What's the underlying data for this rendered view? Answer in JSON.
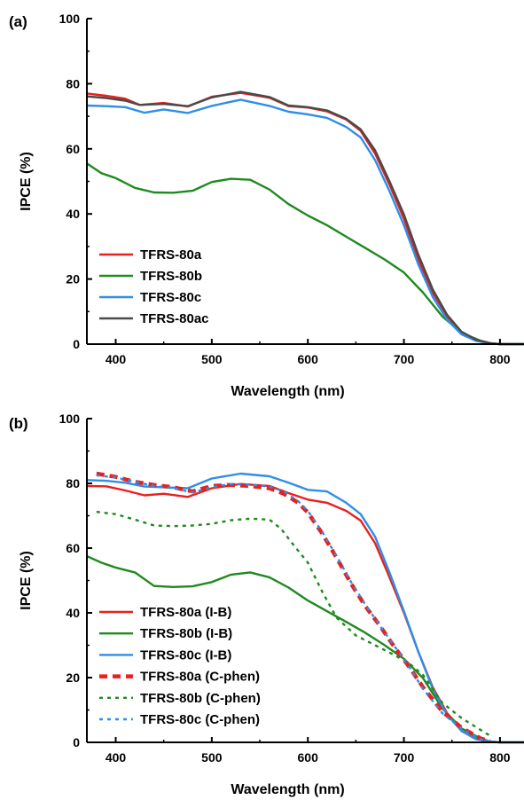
{
  "chart_data": [
    {
      "type": "line",
      "panel_label": "(a)",
      "xlabel": "Wavelength (nm)",
      "ylabel": "IPCE (%)",
      "xlim": [
        370,
        825
      ],
      "ylim": [
        0,
        100
      ],
      "x_ticks": [
        400,
        500,
        600,
        700,
        800
      ],
      "y_ticks": [
        0,
        20,
        40,
        60,
        80,
        100
      ],
      "legend_position": "bottom-left",
      "series": [
        {
          "name": "TFRS-80a",
          "color": "#e8201e",
          "style": "solid",
          "x": [
            370,
            390,
            410,
            425,
            450,
            475,
            500,
            530,
            560,
            580,
            600,
            620,
            640,
            655,
            670,
            685,
            700,
            715,
            730,
            745,
            760,
            775,
            790,
            800,
            825
          ],
          "y": [
            77,
            76.3,
            75.4,
            73.5,
            74.1,
            73.0,
            76.0,
            77.2,
            75.7,
            73.1,
            72.7,
            71.5,
            69.0,
            65.5,
            58.5,
            49,
            38.5,
            26,
            15.8,
            8.5,
            3.5,
            1.3,
            0.3,
            0,
            0
          ]
        },
        {
          "name": "TFRS-80b",
          "color": "#1f8a1f",
          "style": "solid",
          "x": [
            370,
            385,
            400,
            420,
            440,
            460,
            480,
            500,
            520,
            540,
            560,
            580,
            600,
            620,
            640,
            660,
            680,
            700,
            720,
            740,
            760,
            780,
            790,
            800,
            825
          ],
          "y": [
            55.5,
            52.5,
            51,
            48,
            46.6,
            46.5,
            47.1,
            49.8,
            50.8,
            50.5,
            47.5,
            43,
            39.5,
            36.5,
            33,
            29.5,
            26,
            22,
            15.8,
            8.5,
            3.5,
            1,
            0.2,
            0,
            0
          ]
        },
        {
          "name": "TFRS-80c",
          "color": "#2e8ee8",
          "style": "solid",
          "x": [
            370,
            390,
            410,
            430,
            450,
            475,
            500,
            530,
            560,
            580,
            600,
            620,
            640,
            655,
            670,
            685,
            700,
            715,
            730,
            745,
            760,
            775,
            790,
            800,
            825
          ],
          "y": [
            73.3,
            73.1,
            72.8,
            71.1,
            72.1,
            71.0,
            73.2,
            75.1,
            73.2,
            71.4,
            70.6,
            69.5,
            66.7,
            63.5,
            56.5,
            47,
            36.5,
            24.5,
            14.5,
            7.5,
            3,
            1,
            0.2,
            0,
            0
          ]
        },
        {
          "name": "TFRS-80ac",
          "color": "#4a4a4a",
          "style": "solid",
          "x": [
            370,
            390,
            410,
            425,
            450,
            475,
            500,
            530,
            560,
            580,
            600,
            620,
            640,
            655,
            670,
            685,
            700,
            715,
            730,
            745,
            760,
            775,
            790,
            800,
            825
          ],
          "y": [
            76.1,
            75.6,
            74.8,
            73.5,
            73.8,
            73.1,
            75.8,
            77.5,
            75.9,
            73.3,
            72.8,
            71.8,
            69.2,
            66,
            59.5,
            50,
            39.8,
            27.5,
            16.8,
            9,
            3.8,
            1.4,
            0.3,
            0,
            0
          ]
        }
      ]
    },
    {
      "type": "line",
      "panel_label": "(b)",
      "xlabel": "Wavelength (nm)",
      "ylabel": "IPCE (%)",
      "xlim": [
        370,
        825
      ],
      "ylim": [
        0,
        100
      ],
      "x_ticks": [
        400,
        500,
        600,
        700,
        800
      ],
      "y_ticks": [
        0,
        20,
        40,
        60,
        80,
        100
      ],
      "legend_position": "bottom-left",
      "series": [
        {
          "name": "TFRS-80a (I-B)",
          "color": "#e8201e",
          "style": "solid",
          "x": [
            370,
            390,
            410,
            430,
            450,
            475,
            500,
            530,
            560,
            580,
            600,
            620,
            640,
            655,
            670,
            685,
            700,
            715,
            730,
            745,
            760,
            775,
            790,
            800,
            825
          ],
          "y": [
            79.2,
            79.1,
            77.8,
            76.3,
            76.8,
            75.8,
            78.5,
            79.8,
            79.2,
            77,
            75,
            74,
            71.5,
            68.5,
            61.5,
            51,
            40,
            28,
            17,
            9,
            3.5,
            1.2,
            0.3,
            0,
            0
          ]
        },
        {
          "name": "TFRS-80b (I-B)",
          "color": "#1f8a1f",
          "style": "solid",
          "x": [
            370,
            385,
            400,
            420,
            440,
            460,
            480,
            500,
            520,
            540,
            560,
            580,
            600,
            620,
            640,
            660,
            680,
            700,
            720,
            740,
            760,
            780,
            790,
            800,
            825
          ],
          "y": [
            57.5,
            55.5,
            54,
            52.5,
            48.3,
            48,
            48.2,
            49.5,
            51.8,
            52.5,
            51,
            47.8,
            43.8,
            40.5,
            37.2,
            33.8,
            30,
            25.8,
            19.8,
            10.5,
            4.3,
            1.2,
            0.2,
            0,
            0
          ]
        },
        {
          "name": "TFRS-80c (I-B)",
          "color": "#2e8ee8",
          "style": "solid",
          "x": [
            370,
            390,
            410,
            430,
            450,
            475,
            500,
            530,
            560,
            580,
            600,
            620,
            640,
            655,
            670,
            685,
            700,
            715,
            730,
            745,
            760,
            775,
            790,
            800,
            825
          ],
          "y": [
            81,
            80.8,
            80.2,
            79,
            78.8,
            78.5,
            81.5,
            83,
            82.2,
            80.2,
            78,
            77.5,
            74,
            70.5,
            63.5,
            52.5,
            40.5,
            28,
            16.5,
            8.5,
            3.5,
            1,
            0.2,
            0,
            0
          ]
        },
        {
          "name": "TFRS-80a (C-phen)",
          "color": "#e8201e",
          "style": "dash-thick",
          "x": [
            380,
            400,
            420,
            440,
            460,
            480,
            500,
            520,
            540,
            560,
            575,
            590,
            600,
            615,
            630,
            645,
            660,
            675,
            690,
            705,
            720,
            740,
            760,
            780,
            790
          ],
          "y": [
            83,
            82,
            80.5,
            79.5,
            78.8,
            77.5,
            79.2,
            79.5,
            79.2,
            78.5,
            76.8,
            74,
            71,
            64.5,
            57,
            49,
            42,
            36,
            29.5,
            23.5,
            17,
            9.5,
            4.5,
            1.2,
            0.3
          ]
        },
        {
          "name": "TFRS-80b (C-phen)",
          "color": "#1f8a1f",
          "style": "dot-short",
          "x": [
            380,
            400,
            420,
            440,
            460,
            480,
            500,
            520,
            540,
            560,
            572,
            585,
            600,
            615,
            630,
            650,
            670,
            690,
            705,
            720,
            740,
            760,
            780,
            790
          ],
          "y": [
            71.2,
            70.5,
            68.8,
            67,
            66.8,
            67,
            67.5,
            68.6,
            69.1,
            68.8,
            66,
            61,
            55.5,
            46.5,
            38.5,
            33,
            30,
            27,
            24.5,
            20.8,
            12.2,
            7.5,
            3.8,
            2
          ]
        },
        {
          "name": "TFRS-80c (C-phen)",
          "color": "#2e8ee8",
          "style": "dot-short",
          "x": [
            380,
            400,
            420,
            440,
            460,
            480,
            500,
            520,
            540,
            560,
            575,
            590,
            600,
            615,
            630,
            645,
            660,
            675,
            690,
            705,
            720,
            740,
            760,
            780,
            790
          ],
          "y": [
            82.5,
            81.8,
            80.5,
            79.2,
            78.5,
            77.2,
            78.8,
            79.8,
            79.6,
            79,
            77.5,
            74.5,
            71.5,
            65,
            57.5,
            49.5,
            42.5,
            36,
            29.8,
            23.5,
            16.5,
            9,
            4.2,
            1,
            0.2
          ]
        }
      ]
    }
  ]
}
